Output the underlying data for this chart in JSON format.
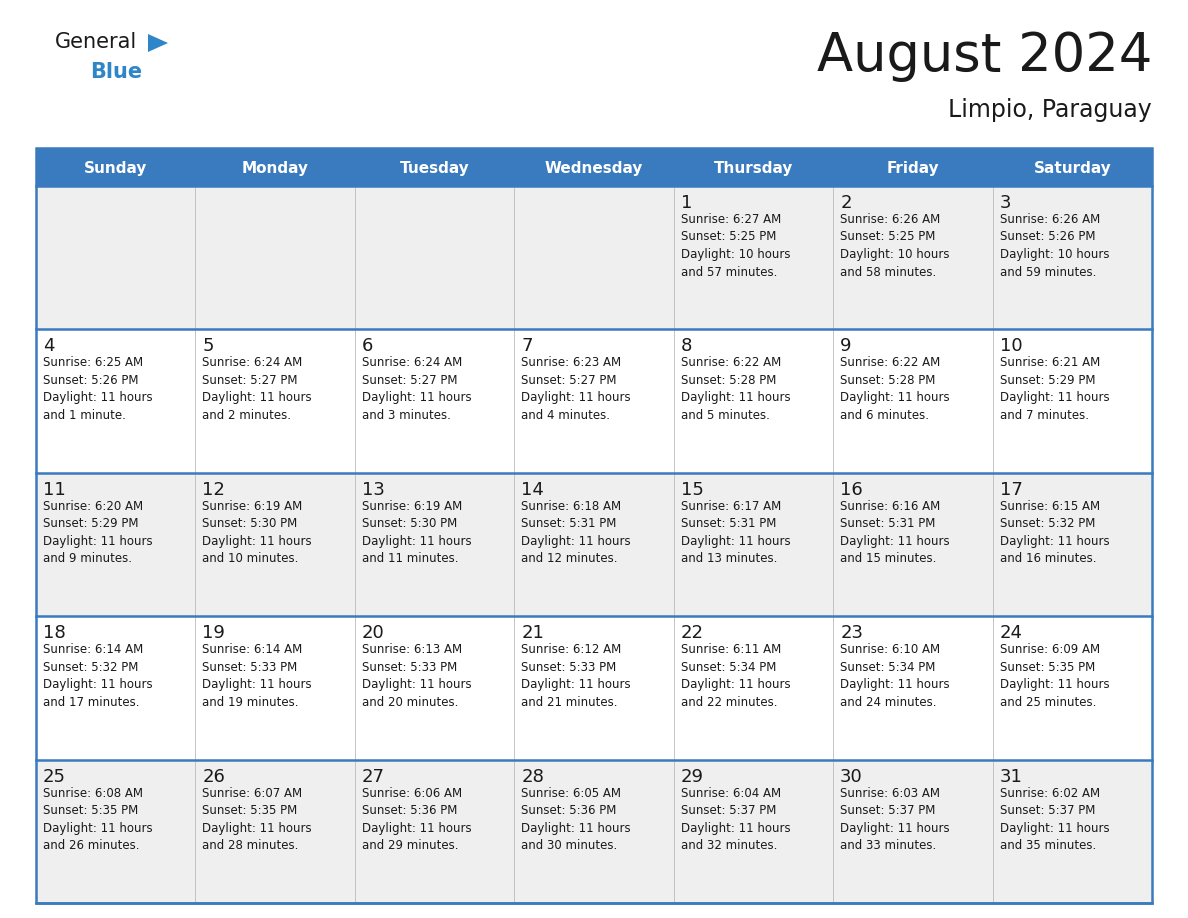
{
  "title": "August 2024",
  "subtitle": "Limpio, Paraguay",
  "header_color": "#3a7abf",
  "header_text_color": "#ffffff",
  "day_names": [
    "Sunday",
    "Monday",
    "Tuesday",
    "Wednesday",
    "Thursday",
    "Friday",
    "Saturday"
  ],
  "week_bg_colors": [
    "#efefef",
    "#ffffff",
    "#efefef",
    "#ffffff",
    "#efefef"
  ],
  "cell_data": [
    [
      "",
      "",
      "",
      "",
      "1\nSunrise: 6:27 AM\nSunset: 5:25 PM\nDaylight: 10 hours\nand 57 minutes.",
      "2\nSunrise: 6:26 AM\nSunset: 5:25 PM\nDaylight: 10 hours\nand 58 minutes.",
      "3\nSunrise: 6:26 AM\nSunset: 5:26 PM\nDaylight: 10 hours\nand 59 minutes."
    ],
    [
      "4\nSunrise: 6:25 AM\nSunset: 5:26 PM\nDaylight: 11 hours\nand 1 minute.",
      "5\nSunrise: 6:24 AM\nSunset: 5:27 PM\nDaylight: 11 hours\nand 2 minutes.",
      "6\nSunrise: 6:24 AM\nSunset: 5:27 PM\nDaylight: 11 hours\nand 3 minutes.",
      "7\nSunrise: 6:23 AM\nSunset: 5:27 PM\nDaylight: 11 hours\nand 4 minutes.",
      "8\nSunrise: 6:22 AM\nSunset: 5:28 PM\nDaylight: 11 hours\nand 5 minutes.",
      "9\nSunrise: 6:22 AM\nSunset: 5:28 PM\nDaylight: 11 hours\nand 6 minutes.",
      "10\nSunrise: 6:21 AM\nSunset: 5:29 PM\nDaylight: 11 hours\nand 7 minutes."
    ],
    [
      "11\nSunrise: 6:20 AM\nSunset: 5:29 PM\nDaylight: 11 hours\nand 9 minutes.",
      "12\nSunrise: 6:19 AM\nSunset: 5:30 PM\nDaylight: 11 hours\nand 10 minutes.",
      "13\nSunrise: 6:19 AM\nSunset: 5:30 PM\nDaylight: 11 hours\nand 11 minutes.",
      "14\nSunrise: 6:18 AM\nSunset: 5:31 PM\nDaylight: 11 hours\nand 12 minutes.",
      "15\nSunrise: 6:17 AM\nSunset: 5:31 PM\nDaylight: 11 hours\nand 13 minutes.",
      "16\nSunrise: 6:16 AM\nSunset: 5:31 PM\nDaylight: 11 hours\nand 15 minutes.",
      "17\nSunrise: 6:15 AM\nSunset: 5:32 PM\nDaylight: 11 hours\nand 16 minutes."
    ],
    [
      "18\nSunrise: 6:14 AM\nSunset: 5:32 PM\nDaylight: 11 hours\nand 17 minutes.",
      "19\nSunrise: 6:14 AM\nSunset: 5:33 PM\nDaylight: 11 hours\nand 19 minutes.",
      "20\nSunrise: 6:13 AM\nSunset: 5:33 PM\nDaylight: 11 hours\nand 20 minutes.",
      "21\nSunrise: 6:12 AM\nSunset: 5:33 PM\nDaylight: 11 hours\nand 21 minutes.",
      "22\nSunrise: 6:11 AM\nSunset: 5:34 PM\nDaylight: 11 hours\nand 22 minutes.",
      "23\nSunrise: 6:10 AM\nSunset: 5:34 PM\nDaylight: 11 hours\nand 24 minutes.",
      "24\nSunrise: 6:09 AM\nSunset: 5:35 PM\nDaylight: 11 hours\nand 25 minutes."
    ],
    [
      "25\nSunrise: 6:08 AM\nSunset: 5:35 PM\nDaylight: 11 hours\nand 26 minutes.",
      "26\nSunrise: 6:07 AM\nSunset: 5:35 PM\nDaylight: 11 hours\nand 28 minutes.",
      "27\nSunrise: 6:06 AM\nSunset: 5:36 PM\nDaylight: 11 hours\nand 29 minutes.",
      "28\nSunrise: 6:05 AM\nSunset: 5:36 PM\nDaylight: 11 hours\nand 30 minutes.",
      "29\nSunrise: 6:04 AM\nSunset: 5:37 PM\nDaylight: 11 hours\nand 32 minutes.",
      "30\nSunrise: 6:03 AM\nSunset: 5:37 PM\nDaylight: 11 hours\nand 33 minutes.",
      "31\nSunrise: 6:02 AM\nSunset: 5:37 PM\nDaylight: 11 hours\nand 35 minutes."
    ]
  ],
  "logo_text_general": "General",
  "logo_text_blue": "Blue",
  "logo_color_general": "#1a1a1a",
  "logo_color_blue": "#2e86c8",
  "logo_triangle_color": "#2e86c8",
  "title_fontsize": 38,
  "subtitle_fontsize": 17,
  "header_fontsize": 11,
  "day_num_fontsize": 13,
  "cell_fontsize": 8.5
}
